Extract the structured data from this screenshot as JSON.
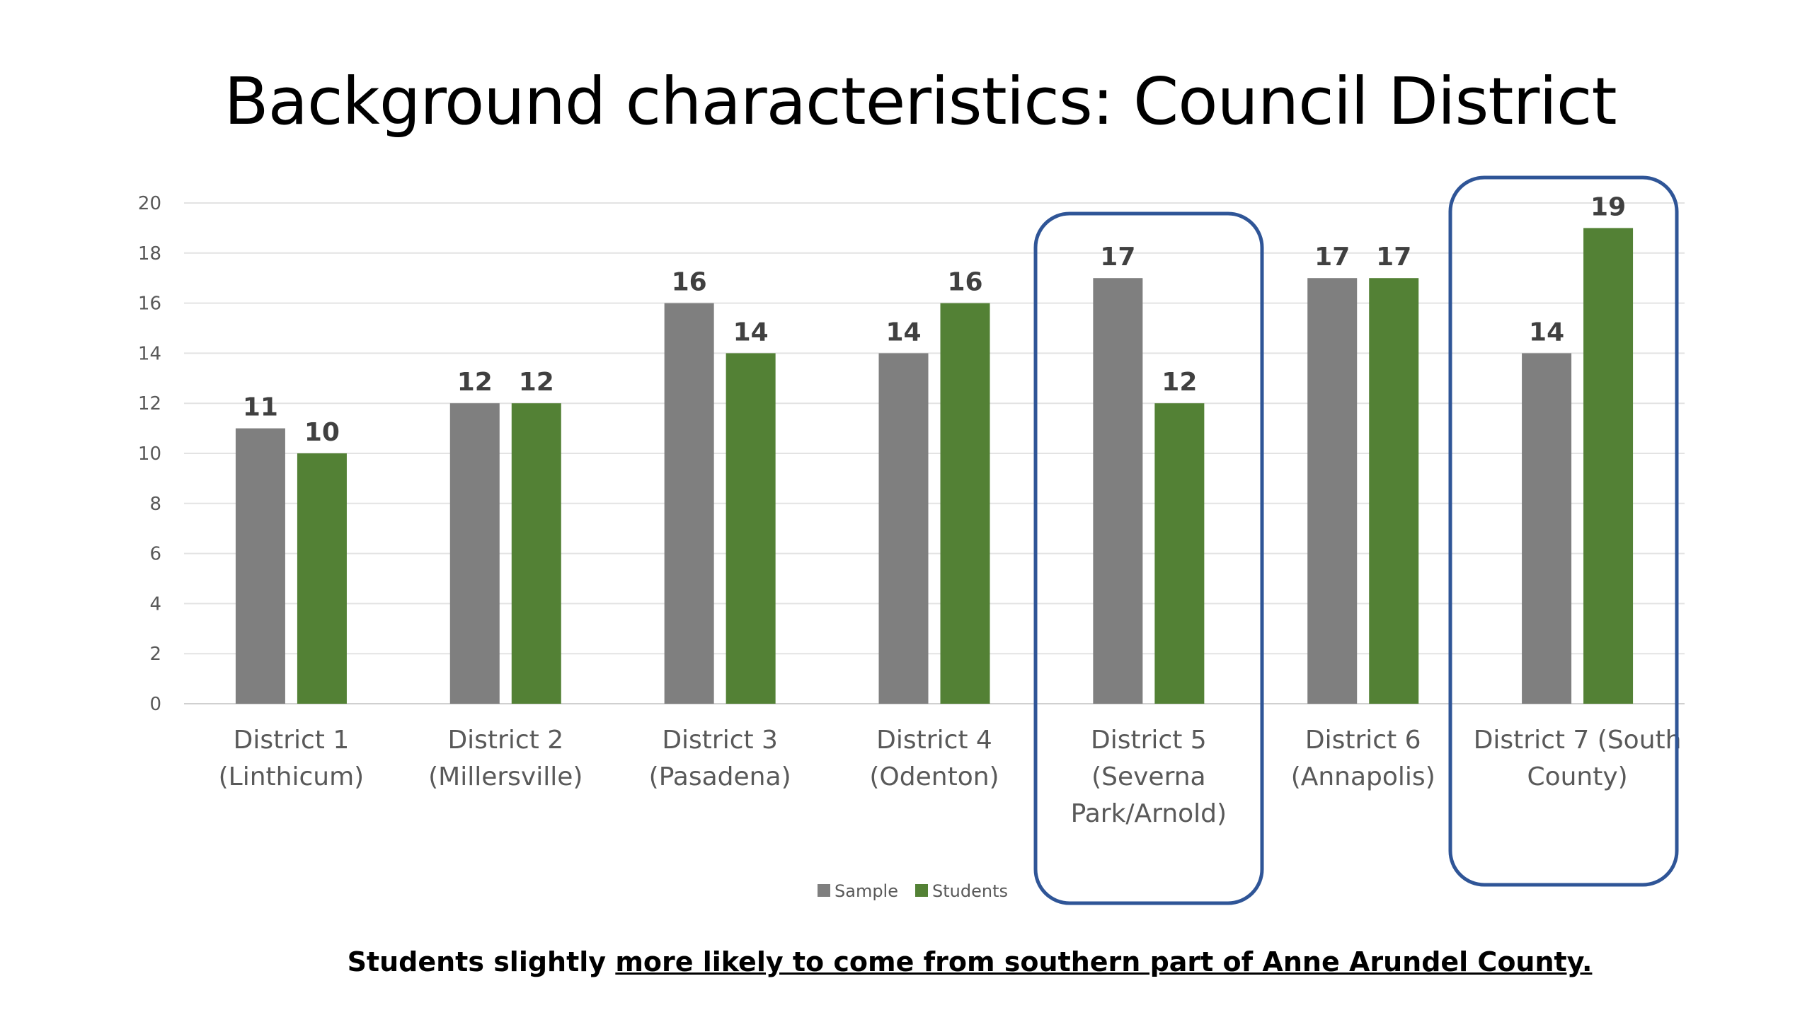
{
  "slide": {
    "title": "Background characteristics: Council District",
    "footnote_plain": "Students slightly ",
    "footnote_underlined": "more likely to come from southern part of Anne Arundel County."
  },
  "chart_data": {
    "type": "bar",
    "title": "",
    "xlabel": "",
    "ylabel": "",
    "ylim": [
      0,
      20
    ],
    "yticks": [
      0,
      2,
      4,
      6,
      8,
      10,
      12,
      14,
      16,
      18,
      20
    ],
    "grid": true,
    "legend": "bottom",
    "categories": [
      [
        "District 1",
        "(Linthicum)"
      ],
      [
        "District 2",
        "(Millersville)"
      ],
      [
        "District 3",
        "(Pasadena)"
      ],
      [
        "District 4",
        "(Odenton)"
      ],
      [
        "District 5",
        "(Severna",
        "Park/Arnold)"
      ],
      [
        "District 6",
        "(Annapolis)"
      ],
      [
        "District 7 (South",
        "County)"
      ]
    ],
    "series": [
      {
        "name": "Sample",
        "color": "#7f7f7f",
        "values": [
          11,
          12,
          16,
          14,
          17,
          17,
          14
        ]
      },
      {
        "name": "Students",
        "color": "#538135",
        "values": [
          10,
          12,
          14,
          16,
          12,
          17,
          19
        ]
      }
    ],
    "highlighted_categories": [
      4,
      6
    ],
    "highlight_color": "#2f5597"
  }
}
